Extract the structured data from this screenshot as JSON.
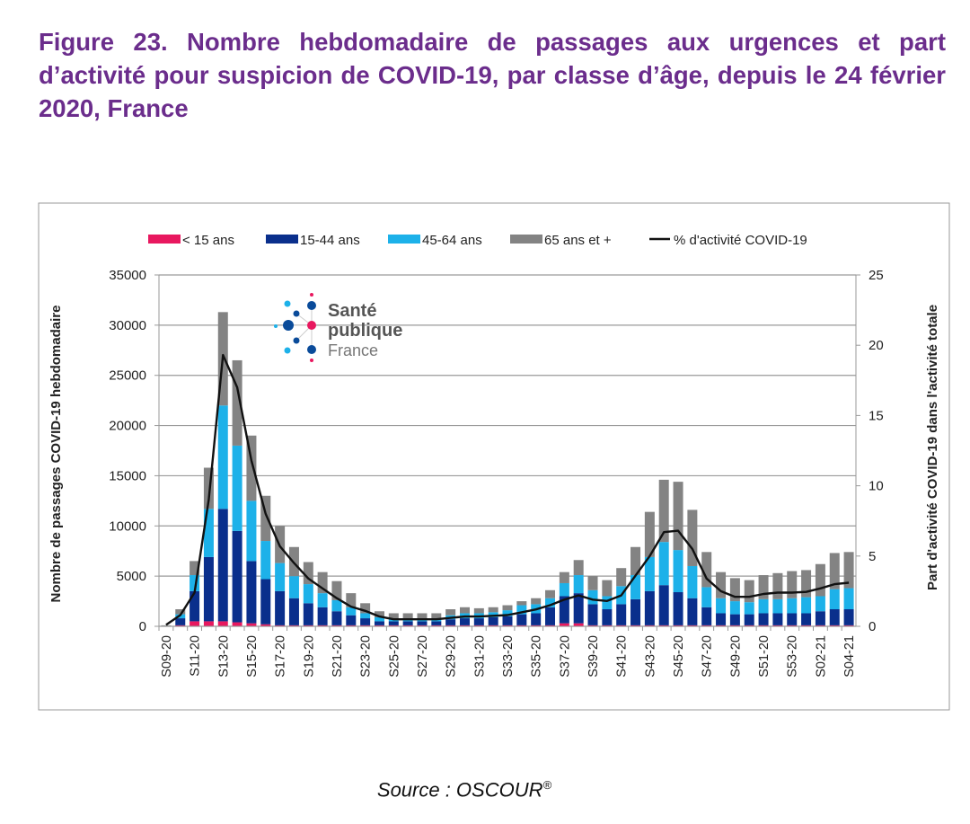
{
  "figure_title": "Figure 23. Nombre hebdomadaire de passages aux urgences et part d’activité pour suspicion de COVID-19, par classe d’âge, depuis le 24 février 2020, France",
  "source": {
    "text": "Source : OSCOUR",
    "mark": "®"
  },
  "logo": {
    "line1": "Santé",
    "line2": "publique",
    "line3": "France"
  },
  "chart_data": {
    "type": "bar",
    "stacked": true,
    "title": "",
    "ylabel": "Nombre de passages COVID-19 hebdomadaire",
    "y2label": "Part d'activité COVID-19 dans l'activité totale",
    "ylim": [
      0,
      35000
    ],
    "y2lim": [
      0,
      25
    ],
    "yticks": [
      "0",
      "5000",
      "10000",
      "15000",
      "20000",
      "25000",
      "30000",
      "35000"
    ],
    "y2ticks": [
      "0",
      "5",
      "10",
      "15",
      "20",
      "25"
    ],
    "grid": true,
    "legend_position": "top",
    "categories": [
      "S09-20",
      "S10-20",
      "S11-20",
      "S12-20",
      "S13-20",
      "S14-20",
      "S15-20",
      "S16-20",
      "S17-20",
      "S18-20",
      "S19-20",
      "S20-20",
      "S21-20",
      "S22-20",
      "S23-20",
      "S24-20",
      "S25-20",
      "S26-20",
      "S27-20",
      "S28-20",
      "S29-20",
      "S30-20",
      "S31-20",
      "S32-20",
      "S33-20",
      "S34-20",
      "S35-20",
      "S36-20",
      "S37-20",
      "S38-20",
      "S39-20",
      "S40-20",
      "S41-20",
      "S42-20",
      "S43-20",
      "S44-20",
      "S45-20",
      "S46-20",
      "S47-20",
      "S48-20",
      "S49-20",
      "S50-20",
      "S51-20",
      "S52-20",
      "S53-20",
      "S01-21",
      "S02-21",
      "S03-21",
      "S04-21"
    ],
    "series": [
      {
        "name": "< 15 ans",
        "color": "#e8185f",
        "values": [
          0,
          100,
          500,
          500,
          500,
          400,
          300,
          200,
          100,
          100,
          100,
          100,
          100,
          100,
          100,
          100,
          100,
          100,
          100,
          100,
          100,
          100,
          100,
          100,
          100,
          100,
          100,
          100,
          300,
          300,
          100,
          100,
          100,
          100,
          100,
          100,
          100,
          100,
          100,
          100,
          100,
          100,
          100,
          100,
          100,
          100,
          100,
          100,
          100
        ]
      },
      {
        "name": "15-44 ans",
        "color": "#0a2f8c",
        "values": [
          30,
          700,
          3000,
          6400,
          11200,
          9100,
          6200,
          4500,
          3400,
          2700,
          2200,
          1800,
          1400,
          1000,
          700,
          400,
          400,
          400,
          400,
          400,
          600,
          700,
          700,
          800,
          900,
          1100,
          1200,
          1800,
          2700,
          3000,
          2100,
          1600,
          2100,
          2600,
          3400,
          4000,
          3300,
          2700,
          1800,
          1200,
          1100,
          1100,
          1200,
          1200,
          1200,
          1200,
          1400,
          1600,
          1600
        ]
      },
      {
        "name": "45-64 ans",
        "color": "#1db1e9",
        "values": [
          20,
          400,
          1600,
          4800,
          10300,
          8500,
          6000,
          3800,
          2800,
          2200,
          1900,
          1400,
          1100,
          800,
          500,
          400,
          300,
          300,
          300,
          300,
          400,
          500,
          500,
          500,
          600,
          900,
          900,
          900,
          1300,
          1800,
          1400,
          1300,
          1800,
          2400,
          3400,
          4300,
          4200,
          3200,
          2000,
          1500,
          1300,
          1200,
          1400,
          1400,
          1500,
          1600,
          1500,
          2000,
          2100
        ]
      },
      {
        "name": "65 ans et +",
        "color": "#838383",
        "values": [
          50,
          500,
          1400,
          4100,
          9300,
          8500,
          6500,
          4500,
          3700,
          2900,
          2200,
          2100,
          1900,
          1400,
          1000,
          600,
          500,
          500,
          500,
          500,
          600,
          600,
          500,
          500,
          500,
          400,
          600,
          800,
          1100,
          1500,
          1400,
          1600,
          1800,
          2800,
          4500,
          6200,
          6800,
          5600,
          3500,
          2600,
          2300,
          2200,
          2400,
          2600,
          2700,
          2700,
          3200,
          3600,
          3600
        ]
      }
    ],
    "line": {
      "name": "% d'activité COVID-19",
      "color": "#111111",
      "axis": "right",
      "values": [
        0.1,
        0.8,
        2.4,
        9.0,
        19.3,
        17.0,
        11.8,
        8.0,
        5.7,
        4.5,
        3.4,
        2.7,
        2.0,
        1.4,
        1.1,
        0.7,
        0.5,
        0.5,
        0.5,
        0.5,
        0.6,
        0.7,
        0.7,
        0.75,
        0.8,
        1.0,
        1.2,
        1.5,
        1.9,
        2.2,
        1.9,
        1.8,
        2.2,
        3.6,
        5.0,
        6.7,
        6.8,
        5.5,
        3.4,
        2.5,
        2.1,
        2.1,
        2.3,
        2.4,
        2.4,
        2.45,
        2.7,
        3.0,
        3.1
      ]
    }
  }
}
